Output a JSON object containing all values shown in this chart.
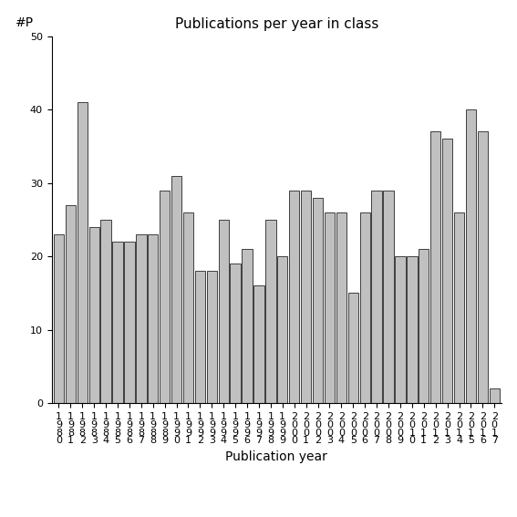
{
  "title": "Publications per year in class",
  "xlabel": "Publication year",
  "ylabel": "#P",
  "years": [
    1980,
    1981,
    1982,
    1983,
    1984,
    1985,
    1986,
    1987,
    1988,
    1989,
    1990,
    1991,
    1992,
    1993,
    1994,
    1995,
    1996,
    1997,
    1998,
    1999,
    2000,
    2001,
    2002,
    2003,
    2004,
    2005,
    2006,
    2007,
    2008,
    2009,
    2010,
    2011,
    2012,
    2013,
    2014,
    2015,
    2016,
    2017
  ],
  "values": [
    23,
    27,
    41,
    24,
    25,
    22,
    22,
    23,
    23,
    29,
    31,
    26,
    18,
    18,
    25,
    19,
    21,
    16,
    25,
    20,
    29,
    29,
    28,
    26,
    26,
    15,
    26,
    29,
    29,
    20,
    20,
    21,
    37,
    36,
    26,
    40,
    37,
    2
  ],
  "bar_color": "#c0c0c0",
  "bar_edge_color": "#000000",
  "ylim": [
    0,
    50
  ],
  "yticks": [
    0,
    10,
    20,
    30,
    40,
    50
  ],
  "background_color": "#ffffff",
  "title_fontsize": 11,
  "axis_label_fontsize": 10,
  "tick_fontsize": 8
}
